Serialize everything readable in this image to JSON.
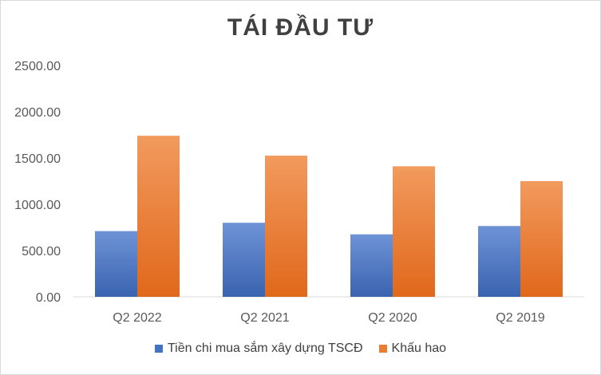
{
  "chart_data": {
    "type": "bar",
    "title": "TÁI ĐẦU TƯ",
    "xlabel": "",
    "ylabel": "",
    "categories": [
      "Q2 2022",
      "Q2 2021",
      "Q2 2020",
      "Q2 2019"
    ],
    "series": [
      {
        "name": "Tiền chi mua sắm xây dựng TSCĐ",
        "values": [
          710,
          800,
          675,
          765
        ],
        "color": "#4472c4"
      },
      {
        "name": "Khấu hao",
        "values": [
          1740,
          1525,
          1410,
          1250
        ],
        "color": "#ed7d31"
      }
    ],
    "ylim": [
      0,
      2500
    ],
    "yticks": [
      "0.00",
      "500.00",
      "1000.00",
      "1500.00",
      "2000.00",
      "2500.00"
    ],
    "grid": false,
    "legend": "bottom"
  }
}
